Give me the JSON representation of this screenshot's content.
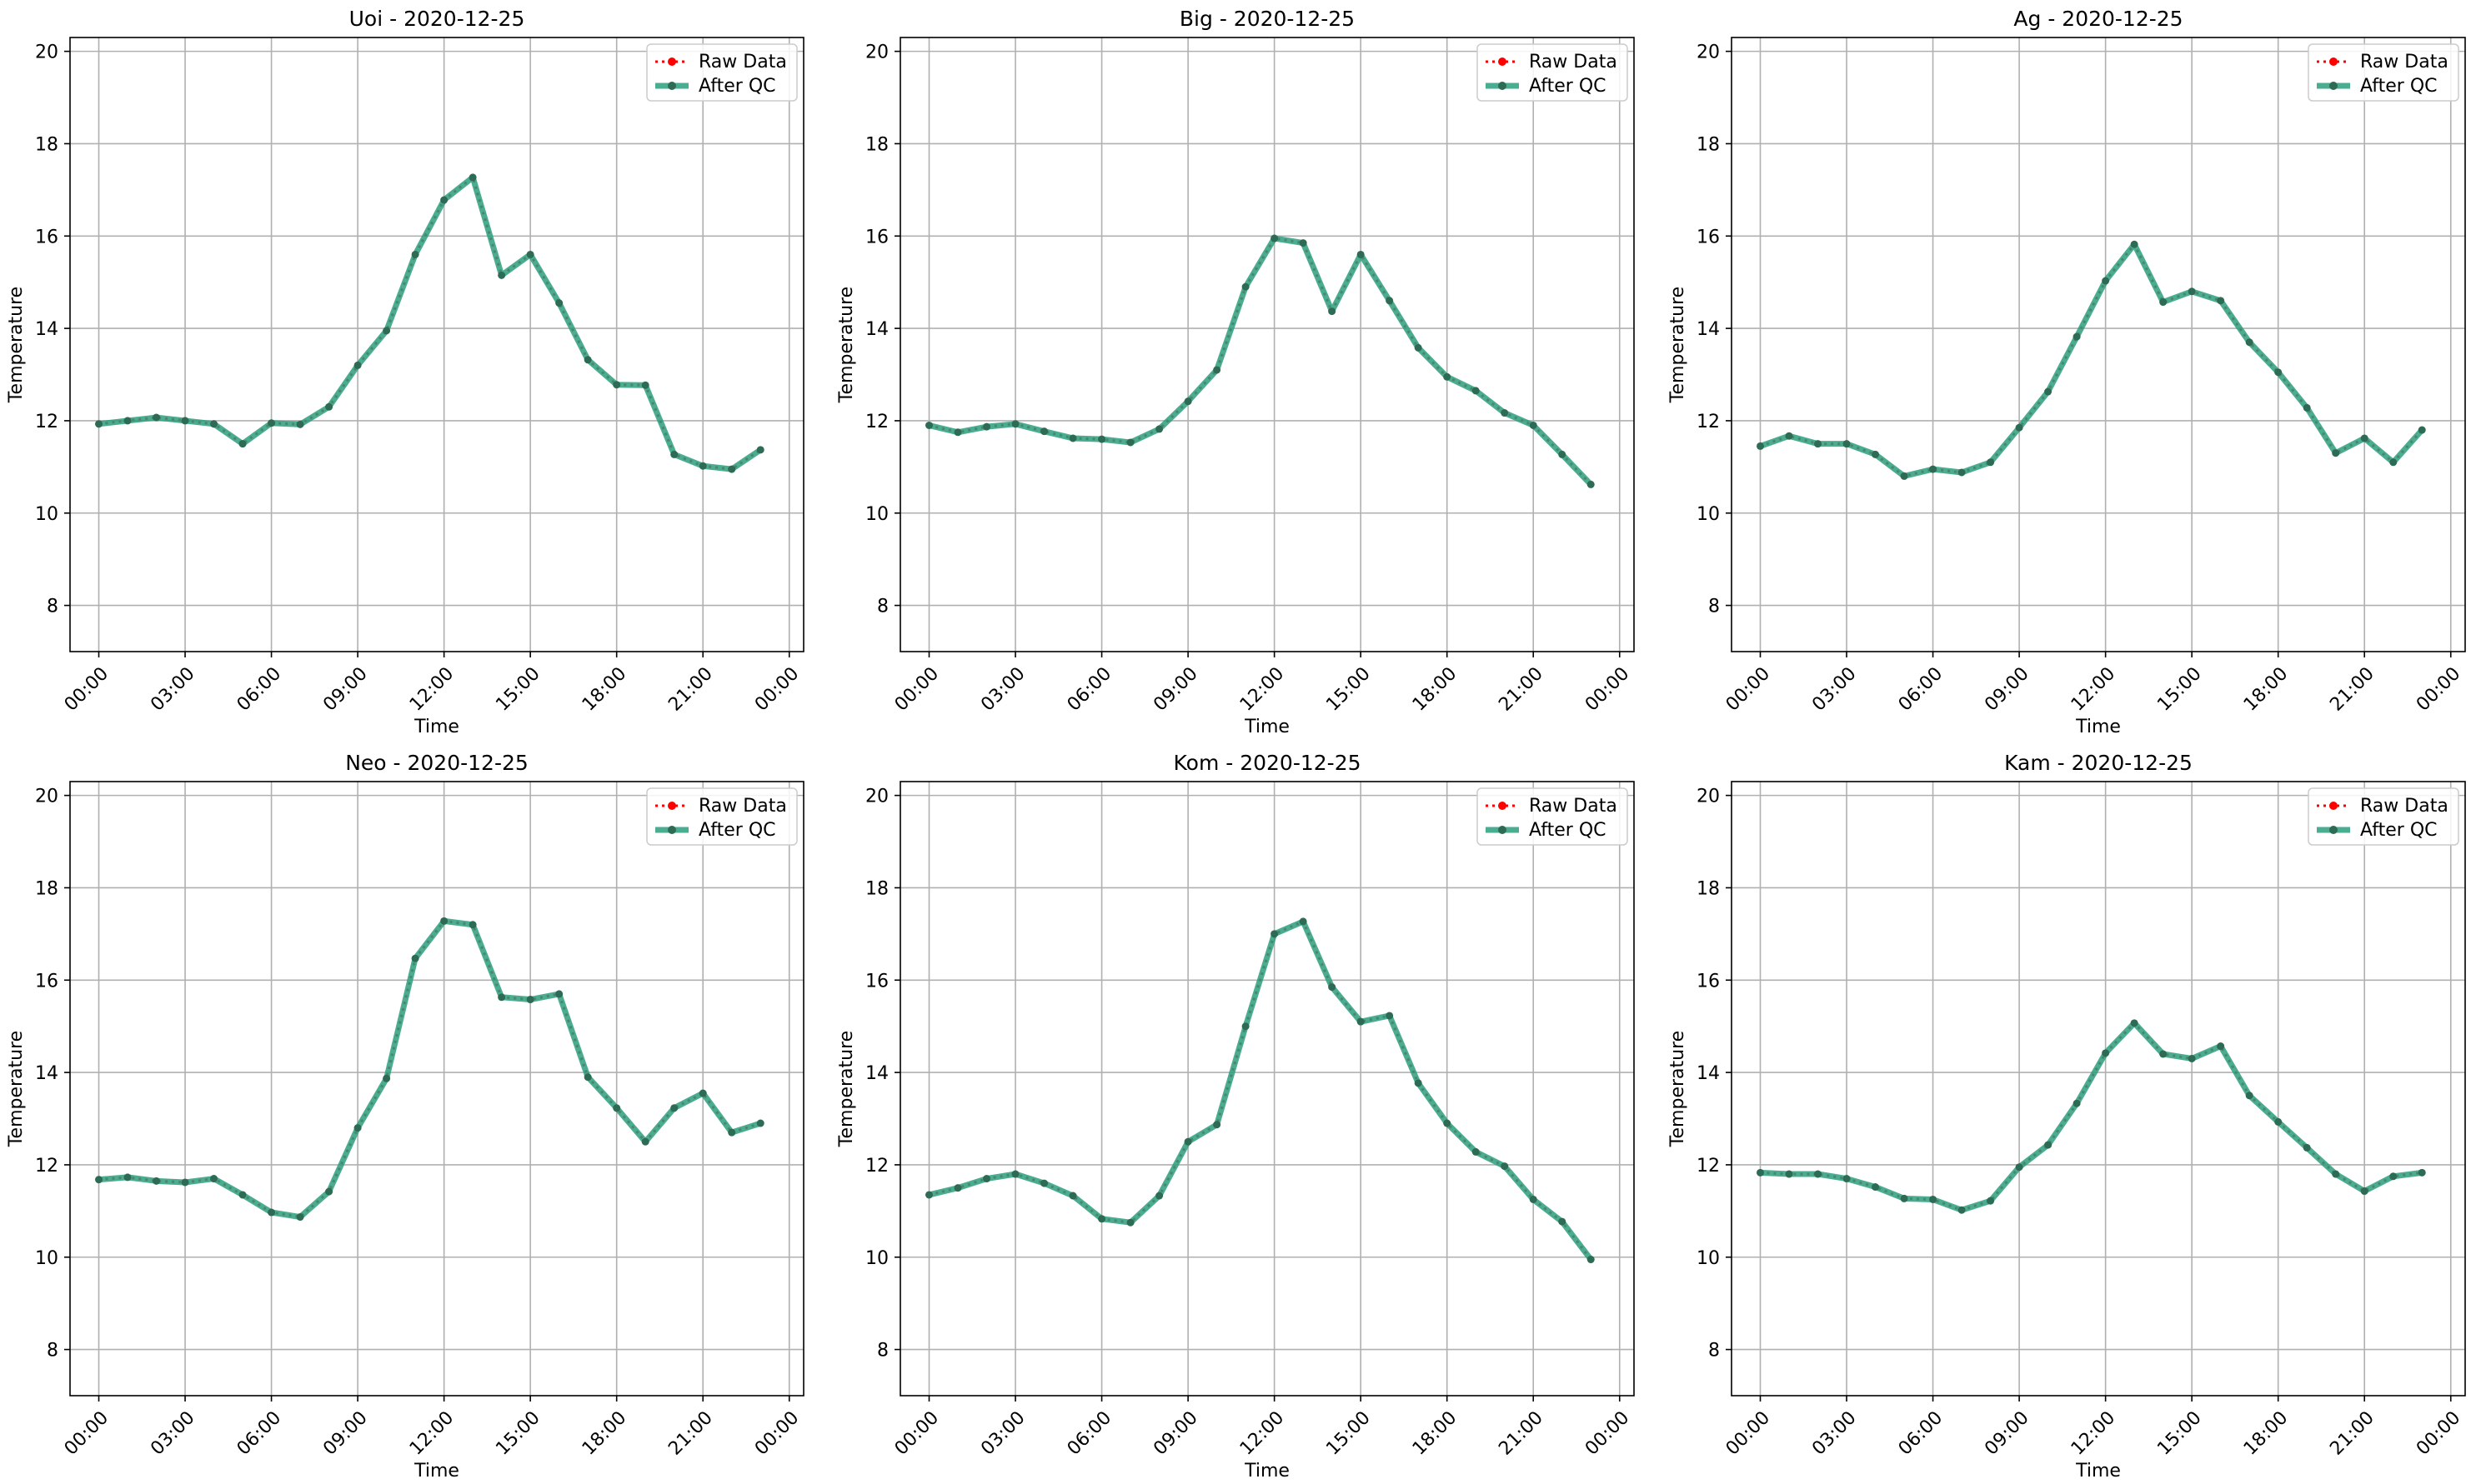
{
  "figure": {
    "legend_labels": {
      "raw": "Raw Data",
      "qc": "After QC"
    },
    "colors": {
      "raw": "#ff0000",
      "qc": "#2a9d7c",
      "marker": "#2e6b55",
      "grid": "#b0b0b0",
      "axis": "#000000"
    }
  },
  "chart_data": [
    {
      "type": "line",
      "title": "Uoi - 2020-12-25",
      "xlabel": "Time",
      "ylabel": "Temperature",
      "ylim": [
        7,
        20.3
      ],
      "xlim_hours": [
        -1,
        24.5
      ],
      "grid": true,
      "legend": "top-right",
      "xticks": [
        "00:00",
        "03:00",
        "06:00",
        "09:00",
        "12:00",
        "15:00",
        "18:00",
        "21:00",
        "00:00"
      ],
      "yticks": [
        "8",
        "10",
        "12",
        "14",
        "16",
        "18",
        "20"
      ],
      "x": [
        0,
        1,
        2,
        3,
        4,
        5,
        6,
        7,
        8,
        9,
        10,
        11,
        12,
        13,
        14,
        15,
        16,
        17,
        18,
        19,
        20,
        21,
        22,
        23
      ],
      "series": [
        {
          "name": "Raw Data",
          "values": [
            11.93,
            12.0,
            12.07,
            12.0,
            11.93,
            11.5,
            11.95,
            11.92,
            12.3,
            13.2,
            13.95,
            15.6,
            16.78,
            17.27,
            15.15,
            15.6,
            14.55,
            13.32,
            12.78,
            12.77,
            11.27,
            11.02,
            10.95,
            11.37
          ]
        },
        {
          "name": "After QC",
          "values": [
            11.93,
            12.0,
            12.07,
            12.0,
            11.93,
            11.5,
            11.95,
            11.92,
            12.3,
            13.2,
            13.95,
            15.6,
            16.78,
            17.27,
            15.15,
            15.6,
            14.55,
            13.32,
            12.78,
            12.77,
            11.27,
            11.02,
            10.95,
            11.37
          ]
        }
      ]
    },
    {
      "type": "line",
      "title": "Big - 2020-12-25",
      "xlabel": "Time",
      "ylabel": "Temperature",
      "ylim": [
        7,
        20.3
      ],
      "xlim_hours": [
        -1,
        24.5
      ],
      "grid": true,
      "legend": "top-right",
      "xticks": [
        "00:00",
        "03:00",
        "06:00",
        "09:00",
        "12:00",
        "15:00",
        "18:00",
        "21:00",
        "00:00"
      ],
      "yticks": [
        "8",
        "10",
        "12",
        "14",
        "16",
        "18",
        "20"
      ],
      "x": [
        0,
        1,
        2,
        3,
        4,
        5,
        6,
        7,
        8,
        9,
        10,
        11,
        12,
        13,
        14,
        15,
        16,
        17,
        18,
        19,
        20,
        21,
        22,
        23
      ],
      "series": [
        {
          "name": "Raw Data",
          "values": [
            11.9,
            11.75,
            11.87,
            11.93,
            11.77,
            11.62,
            11.6,
            11.53,
            11.82,
            12.42,
            13.1,
            14.9,
            15.95,
            15.85,
            14.37,
            15.6,
            14.6,
            13.58,
            12.95,
            12.65,
            12.17,
            11.9,
            11.27,
            10.62
          ]
        },
        {
          "name": "After QC",
          "values": [
            11.9,
            11.75,
            11.87,
            11.93,
            11.77,
            11.62,
            11.6,
            11.53,
            11.82,
            12.42,
            13.1,
            14.9,
            15.95,
            15.85,
            14.37,
            15.6,
            14.6,
            13.58,
            12.95,
            12.65,
            12.17,
            11.9,
            11.27,
            10.62
          ]
        }
      ]
    },
    {
      "type": "line",
      "title": "Ag - 2020-12-25",
      "xlabel": "Time",
      "ylabel": "Temperature",
      "ylim": [
        7,
        20.3
      ],
      "xlim_hours": [
        -1,
        24.5
      ],
      "grid": true,
      "legend": "top-right",
      "xticks": [
        "00:00",
        "03:00",
        "06:00",
        "09:00",
        "12:00",
        "15:00",
        "18:00",
        "21:00",
        "00:00"
      ],
      "yticks": [
        "8",
        "10",
        "12",
        "14",
        "16",
        "18",
        "20"
      ],
      "x": [
        0,
        1,
        2,
        3,
        4,
        5,
        6,
        7,
        8,
        9,
        10,
        11,
        12,
        13,
        14,
        15,
        16,
        17,
        18,
        19,
        20,
        21,
        22,
        23
      ],
      "series": [
        {
          "name": "Raw Data",
          "values": [
            11.45,
            11.67,
            11.5,
            11.5,
            11.27,
            10.8,
            10.95,
            10.88,
            11.1,
            11.85,
            12.63,
            13.82,
            15.03,
            15.82,
            14.57,
            14.8,
            14.6,
            13.7,
            13.05,
            12.28,
            11.3,
            11.62,
            11.1,
            11.8
          ]
        },
        {
          "name": "After QC",
          "values": [
            11.45,
            11.67,
            11.5,
            11.5,
            11.27,
            10.8,
            10.95,
            10.88,
            11.1,
            11.85,
            12.63,
            13.82,
            15.03,
            15.82,
            14.57,
            14.8,
            14.6,
            13.7,
            13.05,
            12.28,
            11.3,
            11.62,
            11.1,
            11.8
          ]
        }
      ]
    },
    {
      "type": "line",
      "title": "Neo - 2020-12-25",
      "xlabel": "Time",
      "ylabel": "Temperature",
      "ylim": [
        7,
        20.3
      ],
      "xlim_hours": [
        -1,
        24.5
      ],
      "grid": true,
      "legend": "top-right",
      "xticks": [
        "00:00",
        "03:00",
        "06:00",
        "09:00",
        "12:00",
        "15:00",
        "18:00",
        "21:00",
        "00:00"
      ],
      "yticks": [
        "8",
        "10",
        "12",
        "14",
        "16",
        "18",
        "20"
      ],
      "x": [
        0,
        1,
        2,
        3,
        4,
        5,
        6,
        7,
        8,
        9,
        10,
        11,
        12,
        13,
        14,
        15,
        16,
        17,
        18,
        19,
        20,
        21,
        22,
        23
      ],
      "series": [
        {
          "name": "Raw Data",
          "values": [
            11.68,
            11.73,
            11.65,
            11.62,
            11.7,
            11.35,
            10.97,
            10.87,
            11.42,
            12.8,
            13.87,
            16.47,
            17.28,
            17.2,
            15.63,
            15.58,
            15.7,
            13.9,
            13.23,
            12.5,
            13.23,
            13.55,
            12.7,
            12.9
          ]
        },
        {
          "name": "After QC",
          "values": [
            11.68,
            11.73,
            11.65,
            11.62,
            11.7,
            11.35,
            10.97,
            10.87,
            11.42,
            12.8,
            13.87,
            16.47,
            17.28,
            17.2,
            15.63,
            15.58,
            15.7,
            13.9,
            13.23,
            12.5,
            13.23,
            13.55,
            12.7,
            12.9
          ]
        }
      ]
    },
    {
      "type": "line",
      "title": "Kom - 2020-12-25",
      "xlabel": "Time",
      "ylabel": "Temperature",
      "ylim": [
        7,
        20.3
      ],
      "xlim_hours": [
        -1,
        24.5
      ],
      "grid": true,
      "legend": "top-right",
      "xticks": [
        "00:00",
        "03:00",
        "06:00",
        "09:00",
        "12:00",
        "15:00",
        "18:00",
        "21:00",
        "00:00"
      ],
      "yticks": [
        "8",
        "10",
        "12",
        "14",
        "16",
        "18",
        "20"
      ],
      "x": [
        0,
        1,
        2,
        3,
        4,
        5,
        6,
        7,
        8,
        9,
        10,
        11,
        12,
        13,
        14,
        15,
        16,
        17,
        18,
        19,
        20,
        21,
        22,
        23
      ],
      "series": [
        {
          "name": "Raw Data",
          "values": [
            11.35,
            11.5,
            11.7,
            11.8,
            11.6,
            11.33,
            10.83,
            10.75,
            11.33,
            12.5,
            12.87,
            15.0,
            17.0,
            17.27,
            15.85,
            15.1,
            15.23,
            13.77,
            12.9,
            12.28,
            11.97,
            11.25,
            10.77,
            9.95
          ]
        },
        {
          "name": "After QC",
          "values": [
            11.35,
            11.5,
            11.7,
            11.8,
            11.6,
            11.33,
            10.83,
            10.75,
            11.33,
            12.5,
            12.87,
            15.0,
            17.0,
            17.27,
            15.85,
            15.1,
            15.23,
            13.77,
            12.9,
            12.28,
            11.97,
            11.25,
            10.77,
            9.95
          ]
        }
      ]
    },
    {
      "type": "line",
      "title": "Kam - 2020-12-25",
      "xlabel": "Time",
      "ylabel": "Temperature",
      "ylim": [
        7,
        20.3
      ],
      "xlim_hours": [
        -1,
        24.5
      ],
      "grid": true,
      "legend": "top-right",
      "xticks": [
        "00:00",
        "03:00",
        "06:00",
        "09:00",
        "12:00",
        "15:00",
        "18:00",
        "21:00",
        "00:00"
      ],
      "yticks": [
        "8",
        "10",
        "12",
        "14",
        "16",
        "18",
        "20"
      ],
      "x": [
        0,
        1,
        2,
        3,
        4,
        5,
        6,
        7,
        8,
        9,
        10,
        11,
        12,
        13,
        14,
        15,
        16,
        17,
        18,
        19,
        20,
        21,
        22,
        23
      ],
      "series": [
        {
          "name": "Raw Data",
          "values": [
            11.83,
            11.8,
            11.8,
            11.7,
            11.52,
            11.27,
            11.25,
            11.02,
            11.22,
            11.95,
            12.43,
            13.33,
            14.42,
            15.07,
            14.4,
            14.3,
            14.57,
            13.5,
            12.93,
            12.37,
            11.8,
            11.43,
            11.75,
            11.83
          ]
        },
        {
          "name": "After QC",
          "values": [
            11.83,
            11.8,
            11.8,
            11.7,
            11.52,
            11.27,
            11.25,
            11.02,
            11.22,
            11.95,
            12.43,
            13.33,
            14.42,
            15.07,
            14.4,
            14.3,
            14.57,
            13.5,
            12.93,
            12.37,
            11.8,
            11.43,
            11.75,
            11.83
          ]
        }
      ]
    }
  ]
}
